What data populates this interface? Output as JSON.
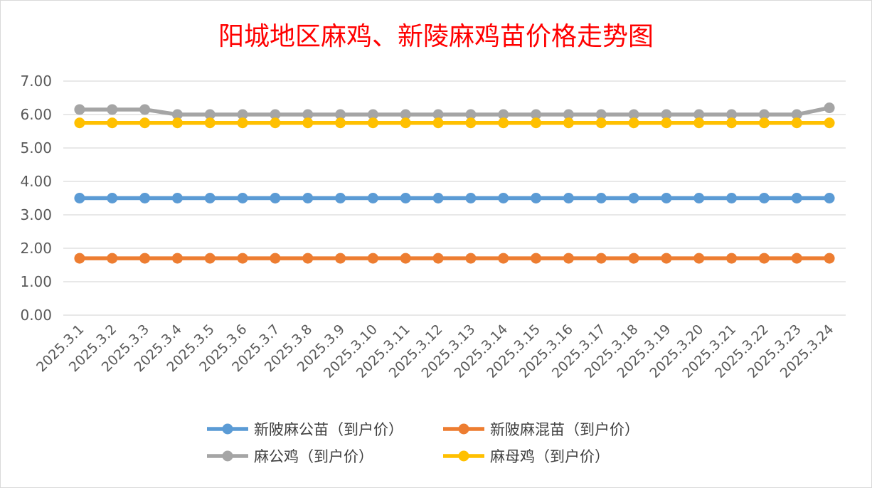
{
  "chart_data": {
    "type": "line",
    "title": "阳城地区麻鸡、新陵麻鸡苗价格走势图",
    "xlabel": "",
    "ylabel": "",
    "ylim": [
      0,
      7
    ],
    "y_ticks": [
      "0.00",
      "1.00",
      "2.00",
      "3.00",
      "4.00",
      "5.00",
      "6.00",
      "7.00"
    ],
    "grid": true,
    "legend_position": "bottom",
    "categories": [
      "2025.3.1",
      "2025.3.2",
      "2025.3.3",
      "2025.3.4",
      "2025.3.5",
      "2025.3.6",
      "2025.3.7",
      "2025.3.8",
      "2025.3.9",
      "2025.3.10",
      "2025.3.11",
      "2025.3.12",
      "2025.3.13",
      "2025.3.14",
      "2025.3.15",
      "2025.3.16",
      "2025.3.17",
      "2025.3.18",
      "2025.3.19",
      "2025.3.20",
      "2025.3.21",
      "2025.3.22",
      "2025.3.23",
      "2025.3.24"
    ],
    "series": [
      {
        "name": "新陂麻公苗（到户价）",
        "color": "#5b9bd5",
        "values": [
          3.5,
          3.5,
          3.5,
          3.5,
          3.5,
          3.5,
          3.5,
          3.5,
          3.5,
          3.5,
          3.5,
          3.5,
          3.5,
          3.5,
          3.5,
          3.5,
          3.5,
          3.5,
          3.5,
          3.5,
          3.5,
          3.5,
          3.5,
          3.5
        ]
      },
      {
        "name": "新陂麻混苗（到户价）",
        "color": "#ed7d31",
        "values": [
          1.7,
          1.7,
          1.7,
          1.7,
          1.7,
          1.7,
          1.7,
          1.7,
          1.7,
          1.7,
          1.7,
          1.7,
          1.7,
          1.7,
          1.7,
          1.7,
          1.7,
          1.7,
          1.7,
          1.7,
          1.7,
          1.7,
          1.7,
          1.7
        ]
      },
      {
        "name": "麻公鸡（到户价）",
        "color": "#a5a5a5",
        "values": [
          6.15,
          6.15,
          6.15,
          6.0,
          6.0,
          6.0,
          6.0,
          6.0,
          6.0,
          6.0,
          6.0,
          6.0,
          6.0,
          6.0,
          6.0,
          6.0,
          6.0,
          6.0,
          6.0,
          6.0,
          6.0,
          6.0,
          6.0,
          6.2
        ]
      },
      {
        "name": "麻母鸡（到户价）",
        "color": "#ffc000",
        "values": [
          5.75,
          5.75,
          5.75,
          5.75,
          5.75,
          5.75,
          5.75,
          5.75,
          5.75,
          5.75,
          5.75,
          5.75,
          5.75,
          5.75,
          5.75,
          5.75,
          5.75,
          5.75,
          5.75,
          5.75,
          5.75,
          5.75,
          5.75,
          5.75
        ]
      }
    ]
  }
}
